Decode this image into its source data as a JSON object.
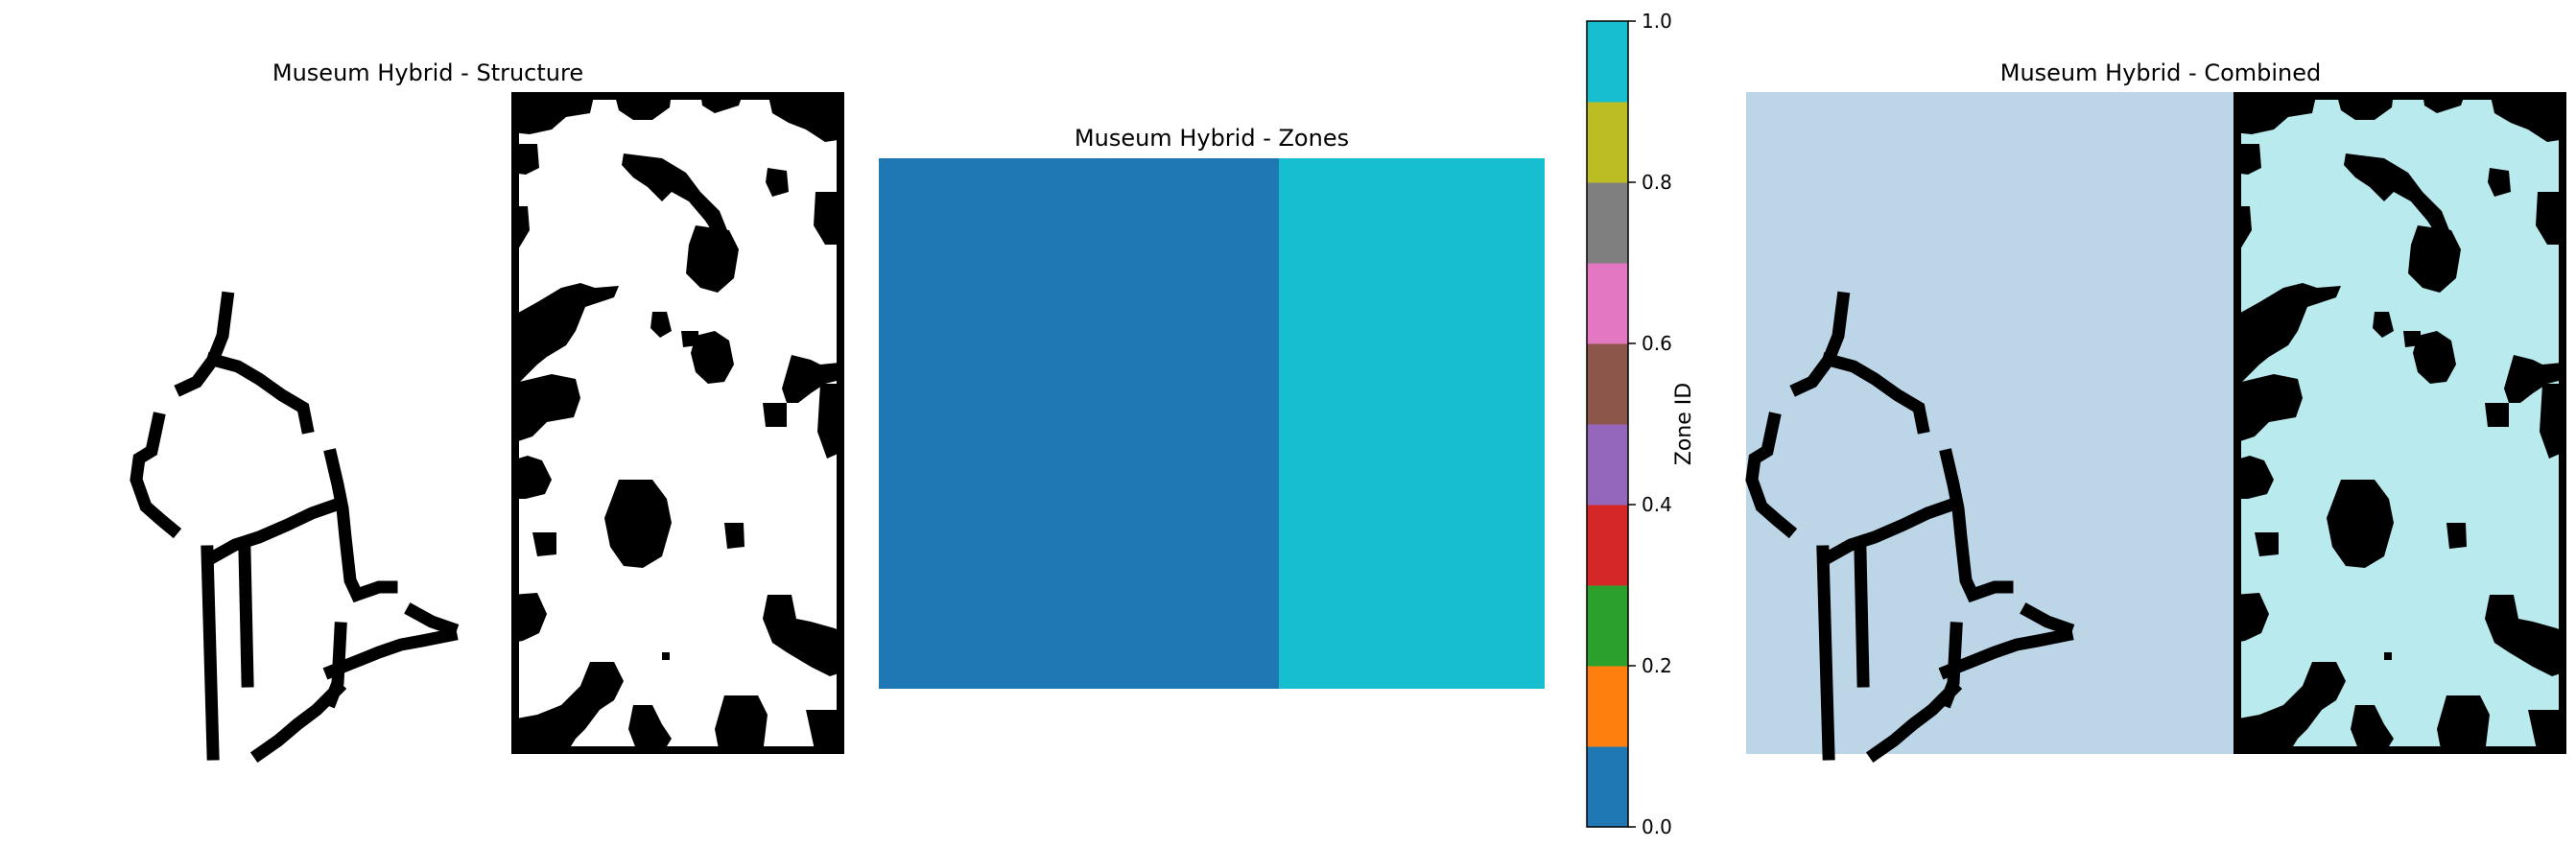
{
  "figure": {
    "panels": [
      {
        "title": "Museum Hybrid - Structure"
      },
      {
        "title": "Museum Hybrid - Zones"
      },
      {
        "title": "Museum Hybrid - Combined"
      }
    ]
  },
  "chart_data": [
    {
      "type": "heatmap",
      "title": "Museum Hybrid - Structure",
      "xlabel": "",
      "ylabel": "",
      "axes": "off",
      "colormap": "binary",
      "description_values": "binary occupancy grid; 1 = wall (black), 0 = open (white)"
    },
    {
      "type": "heatmap",
      "title": "Museum Hybrid - Zones",
      "xlabel": "",
      "ylabel": "",
      "axes": "off",
      "colormap": "tab10",
      "zones": [
        {
          "zone_id": 0,
          "color": "#1f77b4"
        },
        {
          "zone_id": 1,
          "color": "#17becf"
        }
      ],
      "zone_split_fraction": 0.6,
      "colorbar": {
        "label": "Zone ID",
        "range": [
          0.0,
          1.0
        ],
        "ticks": [
          "0.0",
          "0.2",
          "0.4",
          "0.6",
          "0.8",
          "1.0"
        ],
        "colors": [
          "#1f77b4",
          "#ff7f0e",
          "#2ca02c",
          "#d62728",
          "#9467bd",
          "#8c564b",
          "#e377c2",
          "#7f7f7f",
          "#bcbd22",
          "#17becf"
        ]
      }
    },
    {
      "type": "heatmap",
      "title": "Museum Hybrid - Combined",
      "xlabel": "",
      "ylabel": "",
      "axes": "off",
      "overlay": {
        "zone_0_color": "#bcd6e8",
        "zone_1_color": "#b9eaee",
        "wall_color": "#000000"
      }
    }
  ]
}
